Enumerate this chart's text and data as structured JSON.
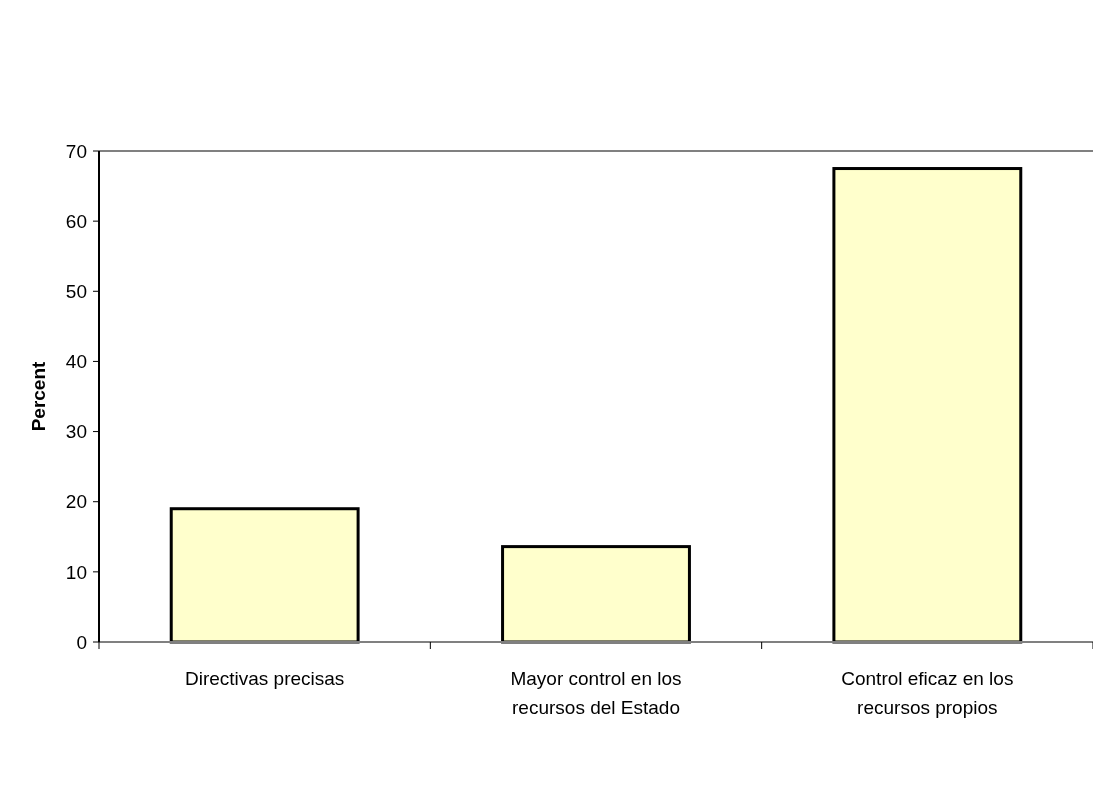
{
  "chart_data": {
    "type": "bar",
    "ylabel": "Percent",
    "categories": [
      "Directivas precisas",
      "Mayor control en los recursos del Estado",
      "Control eficaz en los recursos propios"
    ],
    "values": [
      19.0,
      13.6,
      67.5
    ],
    "color": "#ffffcc",
    "ylim": [
      0,
      70
    ],
    "yticks": [
      0,
      10,
      20,
      30,
      40,
      50,
      60,
      70
    ],
    "grid": false
  }
}
